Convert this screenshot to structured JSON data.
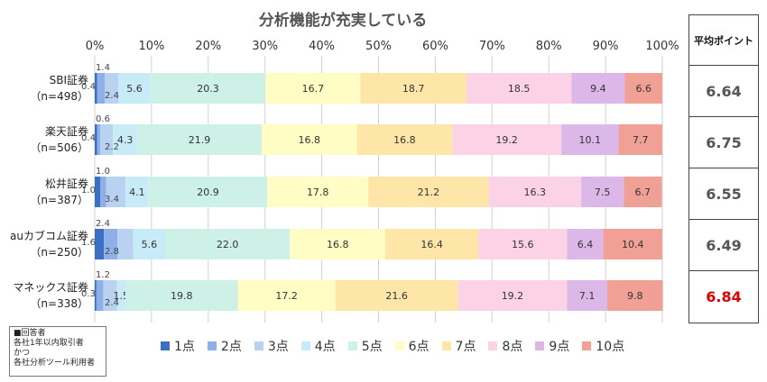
{
  "chart_data": {
    "type": "stacked-bar-horizontal",
    "title": "分析機能が充実している",
    "xlim": [
      0,
      100
    ],
    "x_ticks": [
      "0%",
      "10%",
      "20%",
      "30%",
      "40%",
      "50%",
      "60%",
      "70%",
      "80%",
      "90%",
      "100%"
    ],
    "legend_position": "bottom",
    "series_names": [
      "1点",
      "2点",
      "3点",
      "4点",
      "5点",
      "6点",
      "7点",
      "8点",
      "9点",
      "10点"
    ],
    "colors": [
      "#3a6fc4",
      "#8fb0e6",
      "#b9d2f2",
      "#c8ecf7",
      "#cdf1e6",
      "#fffcc4",
      "#fde6a8",
      "#fcd3e6",
      "#dcb8e8",
      "#f1a096"
    ],
    "categories": [
      {
        "label": "SBI証券",
        "n": "（n=498）",
        "values": [
          0.4,
          1.4,
          2.4,
          5.6,
          20.3,
          16.7,
          18.7,
          18.5,
          9.4,
          6.6
        ]
      },
      {
        "label": "楽天証券",
        "n": "（n=506）",
        "values": [
          0.4,
          0.6,
          2.2,
          4.3,
          21.9,
          16.8,
          16.8,
          19.2,
          10.1,
          7.7
        ]
      },
      {
        "label": "松井証券",
        "n": "（n=387）",
        "values": [
          1.0,
          1.0,
          3.4,
          4.1,
          20.9,
          17.8,
          21.2,
          16.3,
          7.5,
          6.7
        ]
      },
      {
        "label": "auカブコム証券",
        "n": "（n=250）",
        "values": [
          1.6,
          2.4,
          2.8,
          5.6,
          22.0,
          16.8,
          16.4,
          15.6,
          6.4,
          10.4
        ]
      },
      {
        "label": "マネックス証券",
        "n": "（n=338）",
        "values": [
          0.3,
          1.2,
          2.4,
          1.5,
          19.8,
          17.2,
          21.6,
          19.2,
          7.1,
          9.8
        ]
      }
    ],
    "small_value_labels": [
      {
        "row": 0,
        "left": "0.4",
        "top": "1.4",
        "bottom": "2.4"
      },
      {
        "row": 1,
        "left": "0.4",
        "top": "0.6",
        "bottom": "2.2"
      },
      {
        "row": 2,
        "left": "1.0",
        "top": "1.0",
        "bottom": "3.4"
      },
      {
        "row": 3,
        "left": "1.6",
        "top": "2.4",
        "bottom": "2.8"
      },
      {
        "row": 4,
        "left": "0.3",
        "top": "1.2",
        "bottom": "2.4"
      }
    ]
  },
  "average_table": {
    "header": "平均ポイント",
    "values": [
      "6.64",
      "6.75",
      "6.55",
      "6.49",
      "6.84"
    ],
    "highlight_index": 4
  },
  "note": {
    "lines": [
      "■回答者",
      "各社1年以内取引者",
      "かつ",
      "各社分析ツール利用者"
    ]
  }
}
